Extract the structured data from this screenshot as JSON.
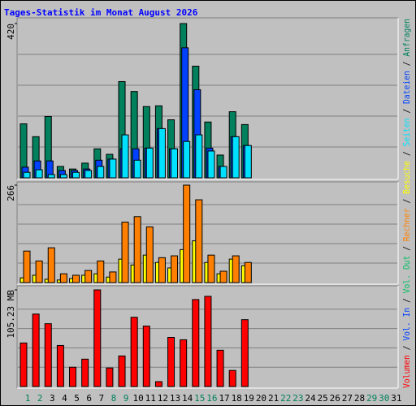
{
  "title": "Tages-Statistik im Monat August 2026",
  "legend_separator": " / ",
  "weekend_color": "#00805c",
  "chart_data": [
    {
      "type": "bar",
      "ylim": [
        0,
        420
      ],
      "yticks": [
        420
      ],
      "series": [
        {
          "name": "Anfragen",
          "color": "#00805c",
          "values": [
            147,
            112,
            167,
            31,
            24,
            40,
            79,
            64,
            262,
            235,
            194,
            196,
            158,
            420,
            304,
            152,
            62,
            180,
            145,
            null,
            null,
            null,
            null,
            null,
            null,
            null,
            null,
            null,
            null,
            null,
            null
          ]
        },
        {
          "name": "Dateien",
          "color": "#0040ff",
          "values": [
            29,
            46,
            46,
            20,
            20,
            24,
            48,
            51,
            79,
            79,
            81,
            134,
            79,
            354,
            240,
            81,
            31,
            112,
            88,
            null,
            null,
            null,
            null,
            null,
            null,
            null,
            null,
            null,
            null,
            null,
            null
          ]
        },
        {
          "name": "Seiten",
          "color": "#00e0ff",
          "values": [
            15,
            22,
            9,
            9,
            15,
            20,
            31,
            51,
            117,
            48,
            81,
            134,
            79,
            99,
            117,
            73,
            31,
            112,
            88,
            null,
            null,
            null,
            null,
            null,
            null,
            null,
            null,
            null,
            null,
            null,
            null
          ]
        }
      ]
    },
    {
      "type": "bar",
      "ylim": [
        0,
        266
      ],
      "yticks": [
        266
      ],
      "series": [
        {
          "name": "Besuche",
          "color": "#ffff00",
          "values": [
            13,
            20,
            9,
            7,
            11,
            20,
            24,
            15,
            64,
            48,
            75,
            55,
            40,
            90,
            114,
            55,
            24,
            64,
            46,
            null,
            null,
            null,
            null,
            null,
            null,
            null,
            null,
            null,
            null,
            null,
            null
          ]
        },
        {
          "name": "Rechner",
          "color": "#ff8000",
          "values": [
            86,
            59,
            95,
            24,
            20,
            33,
            59,
            29,
            165,
            180,
            152,
            68,
            73,
            266,
            226,
            75,
            31,
            73,
            55,
            null,
            null,
            null,
            null,
            null,
            null,
            null,
            null,
            null,
            null,
            null,
            null
          ]
        }
      ]
    },
    {
      "type": "bar",
      "ylim": [
        0,
        105.23
      ],
      "yticks": [
        {
          "value": 105.23,
          "label": "105.23 MB"
        }
      ],
      "categories": [
        "1",
        "2",
        "3",
        "4",
        "5",
        "6",
        "7",
        "8",
        "9",
        "10",
        "11",
        "12",
        "13",
        "14",
        "15",
        "16",
        "17",
        "18",
        "19",
        "20",
        "21",
        "22",
        "23",
        "24",
        "25",
        "26",
        "27",
        "28",
        "29",
        "30",
        "31"
      ],
      "weekend": [
        true,
        true,
        false,
        false,
        false,
        false,
        false,
        true,
        true,
        false,
        false,
        false,
        false,
        false,
        true,
        true,
        false,
        false,
        false,
        false,
        false,
        true,
        true,
        false,
        false,
        false,
        false,
        false,
        true,
        true,
        false
      ],
      "series": [
        {
          "name": "Vol. Out",
          "color": "#00c060",
          "values": [
            0,
            0,
            0,
            0,
            0,
            0,
            0,
            0,
            0,
            0,
            0,
            0,
            0,
            0,
            0,
            0,
            0,
            0,
            0,
            null,
            null,
            null,
            null,
            null,
            null,
            null,
            null,
            null,
            null,
            null,
            null
          ]
        },
        {
          "name": "Vol. In",
          "color": "#0040ff",
          "values": [
            0,
            0,
            0,
            0,
            0,
            0,
            0,
            0,
            0,
            0,
            0,
            0,
            0,
            0,
            0,
            0,
            0,
            0,
            0,
            null,
            null,
            null,
            null,
            null,
            null,
            null,
            null,
            null,
            null,
            null,
            null
          ]
        },
        {
          "name": "Volumen",
          "color": "#ff0000",
          "values": [
            47.4,
            78.9,
            68.4,
            44.7,
            21.0,
            29.8,
            105.23,
            20.2,
            33.3,
            75.4,
            65.8,
            5.3,
            53.5,
            50.9,
            94.7,
            98.2,
            39.5,
            17.5,
            72.8,
            null,
            null,
            null,
            null,
            null,
            null,
            null,
            null,
            null,
            null,
            null,
            null
          ]
        }
      ]
    }
  ]
}
